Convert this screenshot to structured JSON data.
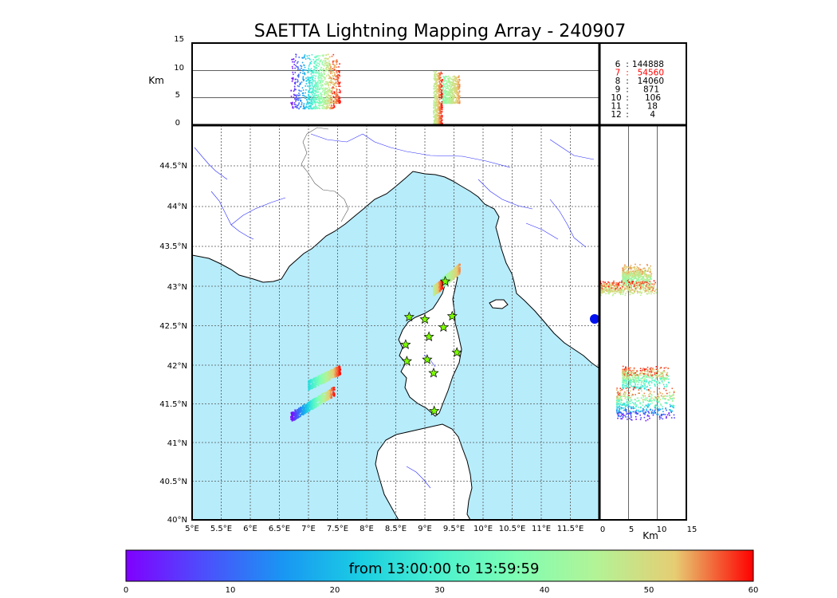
{
  "chart_data": {
    "type": "scatter",
    "title": "SAETTA Lightning Mapping Array - 240907",
    "altitude_panel": {
      "ylabel": "Km",
      "ylim": [
        0,
        15
      ],
      "yticks": [
        "0",
        "5",
        "10",
        "15"
      ]
    },
    "map_panel": {
      "lon_range": [
        5,
        12
      ],
      "lat_range": [
        40,
        45
      ],
      "lon_ticks": [
        "5°E",
        "5.5°E",
        "6°E",
        "6.5°E",
        "7°E",
        "7.5°E",
        "8°E",
        "8.5°E",
        "9°E",
        "9.5°E",
        "10°E",
        "10.5°E",
        "11°E",
        "11.5°E"
      ],
      "lat_ticks": [
        "40°N",
        "40.5°N",
        "41°N",
        "41.5°N",
        "42°N",
        "42.5°N",
        "43°N",
        "43.5°N",
        "44°N",
        "44.5°N"
      ],
      "sea_color": "#b7ecfb",
      "land_color": "#ffffff",
      "grid": true
    },
    "side_panel": {
      "xlabel": "Km",
      "xlim": [
        0,
        15
      ],
      "xticks": [
        "0",
        "5",
        "10",
        "15"
      ]
    },
    "station_counts": [
      {
        "stations": "6",
        "count": "144888",
        "color": "#000000"
      },
      {
        "stations": "7",
        "count": "54560",
        "color": "#ff0000"
      },
      {
        "stations": "8",
        "count": "14060",
        "color": "#000000"
      },
      {
        "stations": "9",
        "count": "871",
        "color": "#000000"
      },
      {
        "stations": "10",
        "count": "106",
        "color": "#000000"
      },
      {
        "stations": "11",
        "count": "18",
        "color": "#000000"
      },
      {
        "stations": "12",
        "count": "4",
        "color": "#000000"
      }
    ],
    "sensor_stations": [
      [
        8.73,
        42.57
      ],
      [
        9.0,
        42.54
      ],
      [
        9.47,
        42.58
      ],
      [
        9.32,
        42.44
      ],
      [
        9.07,
        42.32
      ],
      [
        8.67,
        42.22
      ],
      [
        9.55,
        42.12
      ],
      [
        9.04,
        42.03
      ],
      [
        8.69,
        42.01
      ],
      [
        9.15,
        41.86
      ],
      [
        9.16,
        41.38
      ],
      [
        9.35,
        43.02
      ]
    ],
    "clusters": [
      {
        "name": "cluster-west-north",
        "lon": [
          7.0,
          7.55
        ],
        "lat": [
          41.7,
          41.9
        ],
        "tmin": 25,
        "tmax": 60,
        "alt": [
          4,
          12
        ]
      },
      {
        "name": "cluster-west-south",
        "lon": [
          6.7,
          7.45
        ],
        "lat": [
          41.3,
          41.63
        ],
        "tmin": 0,
        "tmax": 60,
        "alt": [
          3,
          13
        ]
      },
      {
        "name": "cluster-cap-corse",
        "lon": [
          9.3,
          9.6
        ],
        "lat": [
          43.0,
          43.18
        ],
        "tmin": 38,
        "tmax": 55,
        "alt": [
          4,
          9
        ]
      },
      {
        "name": "cluster-north-corsica",
        "lon": [
          9.15,
          9.3
        ],
        "lat": [
          42.9,
          42.98
        ],
        "tmin": 45,
        "tmax": 60,
        "alt": [
          0,
          10
        ]
      }
    ],
    "colorbar": {
      "range": [
        0,
        60
      ],
      "ticks": [
        "0",
        "10",
        "20",
        "30",
        "40",
        "50",
        "60"
      ],
      "label": "from 13:00:00 to 13:59:59",
      "colormap": "rainbow"
    }
  }
}
